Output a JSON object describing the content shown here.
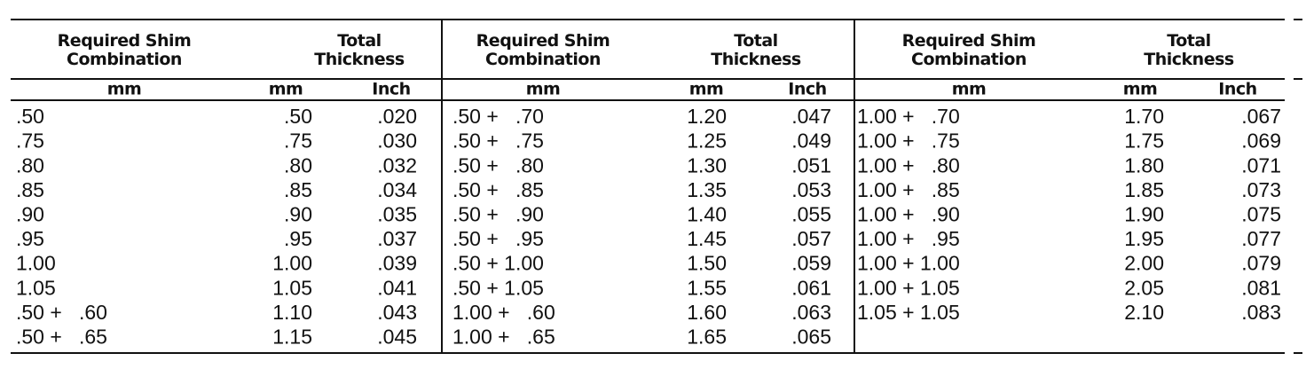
{
  "table": {
    "groups": [
      {
        "header": {
          "combination": "Required Shim Combination",
          "thickness": "Total Thickness"
        },
        "units": [
          "mm",
          "mm",
          "Inch"
        ],
        "rows": [
          [
            ".50",
            ".50",
            ".020"
          ],
          [
            ".75",
            ".75",
            ".030"
          ],
          [
            ".80",
            ".80",
            ".032"
          ],
          [
            ".85",
            ".85",
            ".034"
          ],
          [
            ".90",
            ".90",
            ".035"
          ],
          [
            ".95",
            ".95",
            ".037"
          ],
          [
            "1.00",
            "1.00",
            ".039"
          ],
          [
            "1.05",
            "1.05",
            ".041"
          ],
          [
            ".50 +   .60",
            "1.10",
            ".043"
          ],
          [
            ".50 +   .65",
            "1.15",
            ".045"
          ]
        ]
      },
      {
        "header": {
          "combination": "Required Shim Combination",
          "thickness": "Total Thickness"
        },
        "units": [
          "mm",
          "mm",
          "Inch"
        ],
        "rows": [
          [
            ".50 +   .70",
            "1.20",
            ".047"
          ],
          [
            ".50 +   .75",
            "1.25",
            ".049"
          ],
          [
            ".50 +   .80",
            "1.30",
            ".051"
          ],
          [
            ".50 +   .85",
            "1.35",
            ".053"
          ],
          [
            ".50 +   .90",
            "1.40",
            ".055"
          ],
          [
            ".50 +   .95",
            "1.45",
            ".057"
          ],
          [
            ".50 + 1.00",
            "1.50",
            ".059"
          ],
          [
            ".50 + 1.05",
            "1.55",
            ".061"
          ],
          [
            "1.00 +   .60",
            "1.60",
            ".063"
          ],
          [
            "1.00 +   .65",
            "1.65",
            ".065"
          ]
        ]
      },
      {
        "header": {
          "combination": "Required Shim Combination",
          "thickness": "Total Thickness"
        },
        "units": [
          "mm",
          "mm",
          "Inch"
        ],
        "rows": [
          [
            "1.00 +   .70",
            "1.70",
            ".067"
          ],
          [
            "1.00 +   .75",
            "1.75",
            ".069"
          ],
          [
            "1.00 +   .80",
            "1.80",
            ".071"
          ],
          [
            "1.00 +   .85",
            "1.85",
            ".073"
          ],
          [
            "1.00 +   .90",
            "1.90",
            ".075"
          ],
          [
            "1.00 +   .95",
            "1.95",
            ".077"
          ],
          [
            "1.00 + 1.00",
            "2.00",
            ".079"
          ],
          [
            "1.00 + 1.05",
            "2.05",
            ".081"
          ],
          [
            "1.05 + 1.05",
            "2.10",
            ".083"
          ]
        ]
      }
    ]
  }
}
